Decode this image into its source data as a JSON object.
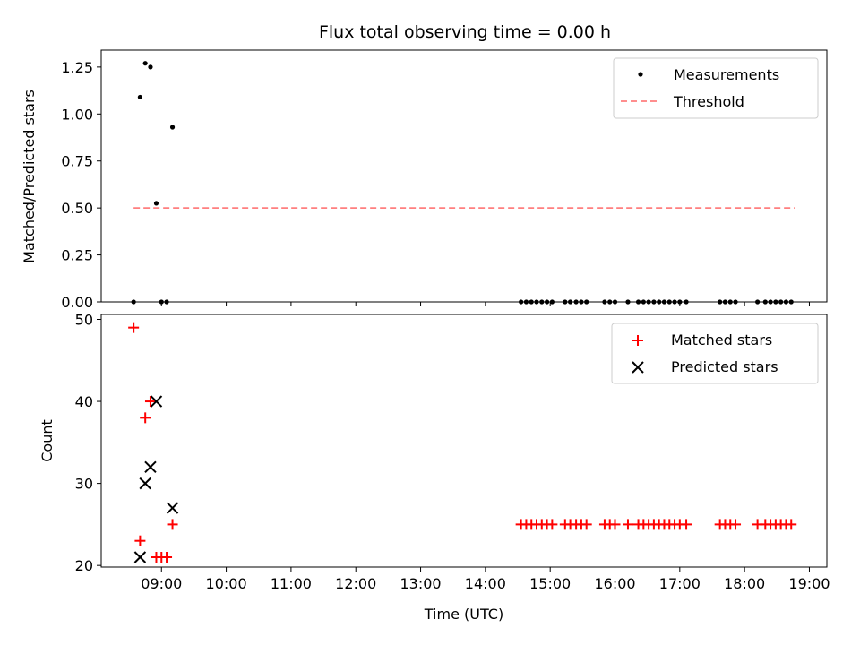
{
  "chart_data": [
    {
      "type": "scatter",
      "title": "Flux total observing time = 0.00 h",
      "xlabel": "",
      "ylabel": "Matched/Predicted stars",
      "ylim": [
        0,
        1.34
      ],
      "xlim": [
        8.07,
        19.27
      ],
      "yticks": [
        0.0,
        0.25,
        0.5,
        0.75,
        1.0,
        1.25
      ],
      "ytick_labels": [
        "0.00",
        "0.25",
        "0.50",
        "0.75",
        "1.00",
        "1.25"
      ],
      "legend_position": "top-right",
      "series": [
        {
          "name": "Measurements",
          "marker": "dot",
          "color": "#000000",
          "x": [
            8.57,
            8.67,
            8.75,
            8.83,
            8.92,
            9.0,
            9.08,
            9.17,
            14.55,
            14.63,
            14.71,
            14.79,
            14.87,
            14.95,
            15.03,
            15.23,
            15.31,
            15.4,
            15.48,
            15.56,
            15.84,
            15.92,
            16.0,
            16.2,
            16.36,
            16.44,
            16.52,
            16.6,
            16.68,
            16.76,
            16.84,
            16.92,
            17.0,
            17.1,
            17.62,
            17.7,
            17.78,
            17.86,
            18.2,
            18.32,
            18.4,
            18.48,
            18.56,
            18.64,
            18.72
          ],
          "y": [
            0.0,
            1.09,
            1.27,
            1.25,
            0.525,
            0.0,
            0.0,
            0.93,
            0.0,
            0.0,
            0.0,
            0.0,
            0.0,
            0.0,
            0.0,
            0.0,
            0.0,
            0.0,
            0.0,
            0.0,
            0.0,
            0.0,
            0.0,
            0.0,
            0.0,
            0.0,
            0.0,
            0.0,
            0.0,
            0.0,
            0.0,
            0.0,
            0.0,
            0.0,
            0.0,
            0.0,
            0.0,
            0.0,
            0.0,
            0.0,
            0.0,
            0.0,
            0.0,
            0.0,
            0.0
          ]
        },
        {
          "name": "Threshold",
          "marker": "dashed-line",
          "color": "#ff7f7f",
          "x": [
            8.57,
            18.78
          ],
          "y": [
            0.5,
            0.5
          ]
        }
      ]
    },
    {
      "type": "scatter",
      "title": "",
      "xlabel": "Time (UTC)",
      "ylabel": "Count",
      "ylim": [
        19.8,
        50.6
      ],
      "xlim": [
        8.07,
        19.27
      ],
      "yticks": [
        20,
        30,
        40,
        50
      ],
      "ytick_labels": [
        "20",
        "30",
        "40",
        "50"
      ],
      "xticks": [
        9,
        10,
        11,
        12,
        13,
        14,
        15,
        16,
        17,
        18,
        19
      ],
      "xtick_labels": [
        "09:00",
        "10:00",
        "11:00",
        "12:00",
        "13:00",
        "14:00",
        "15:00",
        "16:00",
        "17:00",
        "18:00",
        "19:00"
      ],
      "legend_position": "top-right",
      "series": [
        {
          "name": "Matched stars",
          "marker": "plus",
          "color": "#ff0000",
          "x": [
            8.57,
            8.67,
            8.75,
            8.83,
            8.92,
            9.0,
            9.08,
            9.17,
            14.55,
            14.63,
            14.71,
            14.79,
            14.87,
            14.95,
            15.03,
            15.23,
            15.31,
            15.4,
            15.48,
            15.56,
            15.84,
            15.92,
            16.0,
            16.2,
            16.36,
            16.44,
            16.52,
            16.6,
            16.68,
            16.76,
            16.84,
            16.92,
            17.0,
            17.1,
            17.62,
            17.7,
            17.78,
            17.86,
            18.2,
            18.32,
            18.4,
            18.48,
            18.56,
            18.64,
            18.72
          ],
          "y": [
            49,
            23,
            38,
            40,
            21,
            21,
            21,
            25,
            25,
            25,
            25,
            25,
            25,
            25,
            25,
            25,
            25,
            25,
            25,
            25,
            25,
            25,
            25,
            25,
            25,
            25,
            25,
            25,
            25,
            25,
            25,
            25,
            25,
            25,
            25,
            25,
            25,
            25,
            25,
            25,
            25,
            25,
            25,
            25,
            25
          ]
        },
        {
          "name": "Predicted stars",
          "marker": "x",
          "color": "#000000",
          "x": [
            8.67,
            8.75,
            8.83,
            8.92,
            9.17
          ],
          "y": [
            21,
            30,
            32,
            40,
            27
          ]
        }
      ]
    }
  ]
}
